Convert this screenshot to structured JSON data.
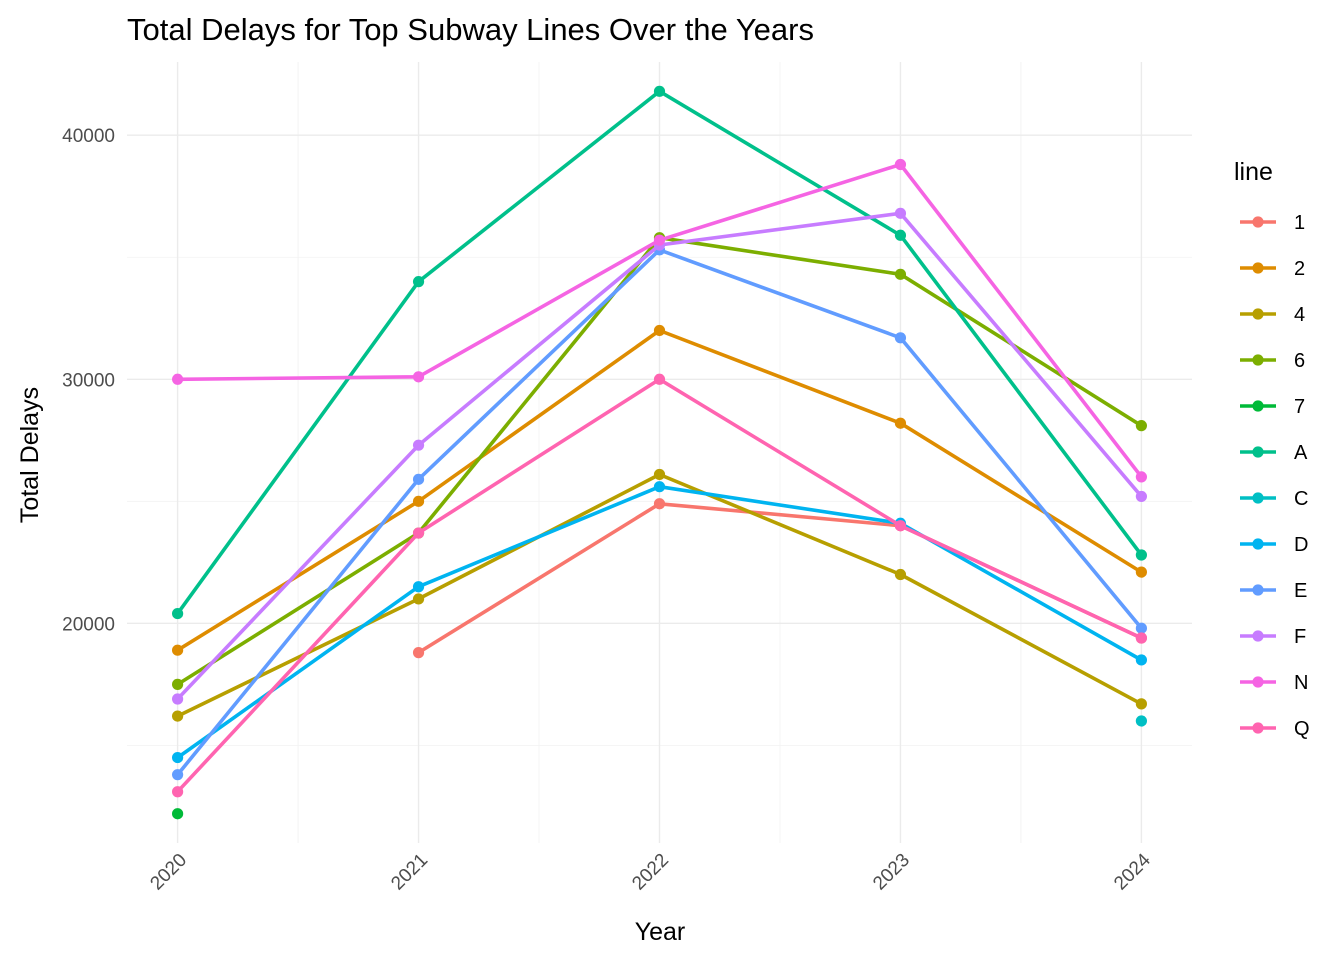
{
  "chart_data": {
    "type": "line",
    "title": "Total Delays for Top Subway Lines Over the Years",
    "xlabel": "Year",
    "ylabel": "Total Delays",
    "x": [
      2020,
      2021,
      2022,
      2023,
      2024
    ],
    "x_tick_labels": [
      "2020",
      "2021",
      "2022",
      "2023",
      "2024"
    ],
    "y_ticks": [
      20000,
      30000,
      40000
    ],
    "y_tick_labels": [
      "20000",
      "30000",
      "40000"
    ],
    "ylim": [
      11000,
      43000
    ],
    "grid": true,
    "legend": {
      "title": "line",
      "position": "right"
    },
    "series": [
      {
        "name": "1",
        "color": "#F8766D",
        "values": [
          null,
          18800,
          24900,
          24000,
          19400
        ]
      },
      {
        "name": "2",
        "color": "#DE8C00",
        "values": [
          18900,
          25000,
          32000,
          28200,
          22100
        ]
      },
      {
        "name": "4",
        "color": "#B79F00",
        "values": [
          16200,
          21000,
          26100,
          22000,
          16700
        ]
      },
      {
        "name": "6",
        "color": "#7CAE00",
        "values": [
          17500,
          23700,
          35800,
          34300,
          28100
        ]
      },
      {
        "name": "7",
        "color": "#00BA38",
        "values": [
          12200,
          null,
          null,
          null,
          null
        ]
      },
      {
        "name": "A",
        "color": "#00C08B",
        "values": [
          20400,
          34000,
          41800,
          35900,
          22800
        ]
      },
      {
        "name": "C",
        "color": "#00BFC4",
        "values": [
          null,
          null,
          null,
          null,
          16000
        ]
      },
      {
        "name": "D",
        "color": "#00B4F0",
        "values": [
          14500,
          21500,
          25600,
          24100,
          18500
        ]
      },
      {
        "name": "E",
        "color": "#619CFF",
        "values": [
          13800,
          25900,
          35300,
          31700,
          19800
        ]
      },
      {
        "name": "F",
        "color": "#C77CFF",
        "values": [
          16900,
          27300,
          35500,
          36800,
          25200
        ]
      },
      {
        "name": "N",
        "color": "#F564E3",
        "values": [
          30000,
          30100,
          35700,
          38800,
          26000
        ]
      },
      {
        "name": "Q",
        "color": "#FF64B0",
        "values": [
          13100,
          23700,
          30000,
          24000,
          19400
        ]
      }
    ]
  }
}
